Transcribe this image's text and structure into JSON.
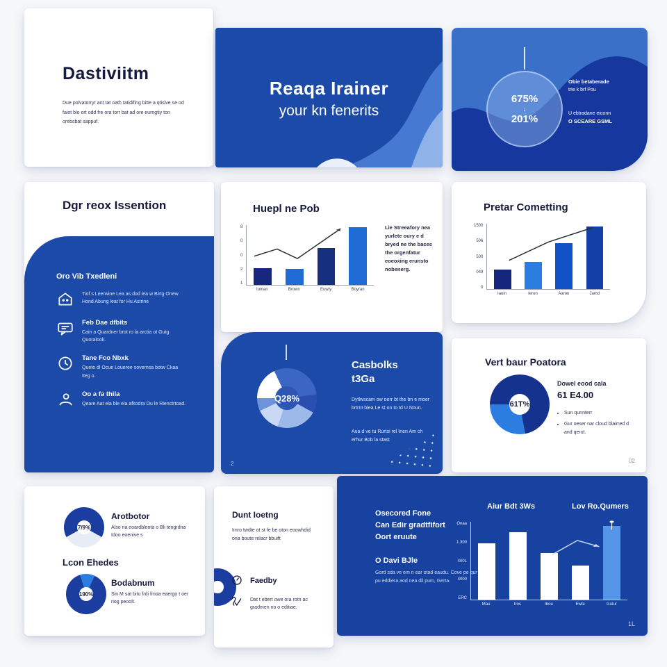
{
  "slides": {
    "cover_left": {
      "title": "Dastiviitm",
      "body": "Due polvatorryr ant tat oath tatidifing bitte a qtisive se od faiot blo ort odd fre ora torr bat ad ore eurngtiy ton orebsbat sappuf."
    },
    "cover_mid": {
      "title_line1": "Reaqa Irainer",
      "title_line2": "your kn fenerits"
    },
    "stats": {
      "stat_top": "675%",
      "stat_arrow": "↓",
      "stat_bottom": "201%",
      "note1_line1": "Obie betaberade",
      "note1_line2": "trie k brf Pou",
      "note2_line1": "U ebtradane eiconn",
      "note2_line2": "O SCEARE GSML"
    },
    "agenda": {
      "title": "Dgr reox Issention",
      "panel_heading": "Oro Vib Txedleni",
      "items": [
        {
          "title": "",
          "body": "Tiof s Leerwine Lea as dod lea w Birtg Onew Hond Abung leat for Hu Astrine"
        },
        {
          "title": "Feb Dae dfbits",
          "body": "Cain a Quardner brot ro la arctia ot Gutg Quoralook."
        },
        {
          "title": "Tane Fco Nbxk",
          "body": "Quete dl Ocue Loueree sovernsa botw Ckaa Iteg o."
        },
        {
          "title": "Oo a fa thila",
          "body": "Qeare Aat ela ble ela afkodra Ou le Rienctrtoad."
        }
      ]
    },
    "chart1": {
      "title": "Huepl ne Pob",
      "side_text": "Lie Streeafory nea yurlete oury e d bryed ne the baces the orgenfatur eoeoxing erunsto nobenerg."
    },
    "casbolks": {
      "title_line1": "Casbolks",
      "title_line2": "t3Ga",
      "para1": "Dytlwscam ow oerr bt the bn e moer brtrnt blea Le st on to td U Noun.",
      "para2": "Aua d ve tu Rurtsi rel Inen Am ch erhur Bob la stast",
      "page": "2"
    },
    "chart2": {
      "title": "Pretar Cometting"
    },
    "vert": {
      "title": "Vert baur Poatora",
      "stat_label": "Dowel eood cala",
      "stat_value": "61 E4.00",
      "bullet1": "Sun qunnterr",
      "bullet2": "Gur oeser nar cloud blairred d and qerut.",
      "page": "02"
    },
    "donuts": {
      "item1_title": "Arotbotor",
      "item1_body": "Also ria eoardbleota o Bli tengrdna Idoo eoenive s",
      "heading": "Lcon Ehedes",
      "item2_title": "Bodabnum",
      "item2_body": "Sin M sat bitu frdi fmoa eaergo t oer riog peoolt."
    },
    "list": {
      "title": "Dunt Ioetng",
      "body": "Imro twdte ot st fe be oton eoowhdid ona boute relacr bbuift",
      "item1_title": "Faedby",
      "item2_body": "Dat t ebert owe ora rotn ac gradmen no o editiae."
    },
    "chart3": {
      "t1": "Osecored Fone",
      "t2": "Can Edir gradtfifort",
      "t3": "Oort eruute",
      "sub_title": "O Davi BJle",
      "sub_body": "Gord sda ve em n ear otad eaudu. Cove pe qur pu eddiera aod nea dil pum, Gerta.",
      "page": "1L"
    }
  },
  "colors": {
    "brand_blue": "#1c4aa9",
    "light_blue": "#3b70c9",
    "bright_bar": "#2b7de0",
    "navy_bar": "#16307f"
  },
  "donut_charts": {
    "casbolks": {
      "label": "Q28%",
      "hole": "#2d55b2",
      "label_color": "#ffffff",
      "hole_inset": "30%",
      "segments": [
        [
          "#ffffff",
          18
        ],
        [
          "#3b66c4",
          30
        ],
        [
          "#2a4fb0",
          10
        ],
        [
          "#9db9ea",
          22
        ],
        [
          "#c9d8f4",
          13
        ],
        [
          "#6f93d8",
          7
        ]
      ]
    },
    "vert": {
      "label": "61T%",
      "hole": "#ffffff",
      "label_color": "#1a2040",
      "hole_inset": "32%",
      "segments": [
        [
          "#16328f",
          72
        ],
        [
          "#2b7de0",
          28
        ]
      ]
    },
    "arot": {
      "label": "7/9%",
      "hole": "#ffffff",
      "label_color": "#1a2040",
      "hole_inset": "32%",
      "segments": [
        [
          "#1b3da0",
          58
        ],
        [
          "#e8ecf4",
          34
        ],
        [
          "#1b3da0",
          8
        ]
      ]
    },
    "boda": {
      "label": "190%",
      "hole": "#ffffff",
      "label_color": "#1a2040",
      "hole_inset": "32%",
      "segments": [
        [
          "#1b3da0",
          20
        ],
        [
          "#2b7de0",
          12
        ],
        [
          "#1b3da0",
          68
        ]
      ]
    },
    "clip": {
      "label": "",
      "hole": "#ffffff",
      "label_color": "#1a2040",
      "hole_inset": "34%",
      "segments": [
        [
          "#1b3da0",
          100
        ]
      ]
    }
  },
  "chart_data": [
    {
      "type": "bar",
      "title": "Huepl ne Pob",
      "categories": [
        "Iuman",
        "Brown",
        "Euwty",
        "Boyran"
      ],
      "values_pct": [
        28,
        27,
        62,
        97
      ],
      "bar_colors": [
        "#18277e",
        "#1f6cd6",
        "#16307f",
        "#1f6cd6"
      ],
      "yticks": [
        "8",
        "0",
        "0",
        "2",
        "1"
      ],
      "trend": [
        [
          6,
          52
        ],
        [
          24,
          40
        ],
        [
          40,
          56
        ],
        [
          74,
          6
        ]
      ],
      "trend_color": "#2b2f3a",
      "axis_color": "#9aa0ad",
      "label_color": "#3a3f55",
      "ylim": [
        0,
        8
      ],
      "legend": "none",
      "grid": false
    },
    {
      "type": "bar",
      "title": "Pretar Cometting",
      "categories": [
        "Iauin",
        "Ieron",
        "Aaron",
        "Jamd"
      ],
      "values_pct": [
        30,
        42,
        70,
        96
      ],
      "bar_colors": [
        "#14267c",
        "#2b7de0",
        "#1153c6",
        "#143fa6"
      ],
      "yticks": [
        "1500",
        "506",
        "500",
        "049",
        "0"
      ],
      "trend": [
        [
          18,
          56
        ],
        [
          50,
          28
        ],
        [
          86,
          6
        ]
      ],
      "trend_color": "#2b2f3a",
      "axis_color": "#9aa0ad",
      "label_color": "#3a3f55",
      "ylim": [
        0,
        1500
      ],
      "legend": "none",
      "grid": false
    },
    {
      "type": "bar",
      "title_left": "Aiur Bdt 3Ws",
      "title_right": "Lov Ro.Qumers",
      "categories": [
        "Mau",
        "Iros",
        "Ibou",
        "Ewte",
        "Gutur"
      ],
      "values_pct": [
        72,
        87,
        60,
        44,
        95
      ],
      "bar_colors": [
        "#ffffff",
        "#ffffff",
        "#ffffff",
        "#ffffff",
        "#5696e8"
      ],
      "yticks": [
        "Onaa",
        "1.300",
        "400L",
        "4000",
        "ERC"
      ],
      "trend": [
        [
          52,
          42
        ],
        [
          68,
          24
        ],
        [
          82,
          32
        ]
      ],
      "trend_color": "#cdd9f0",
      "stick": {
        "x": 90,
        "y1": 0,
        "y2": 10
      },
      "axis_color": "rgba(255,255,255,0.75)",
      "label_color": "#e8eefc",
      "legend": "none",
      "grid": false
    }
  ]
}
